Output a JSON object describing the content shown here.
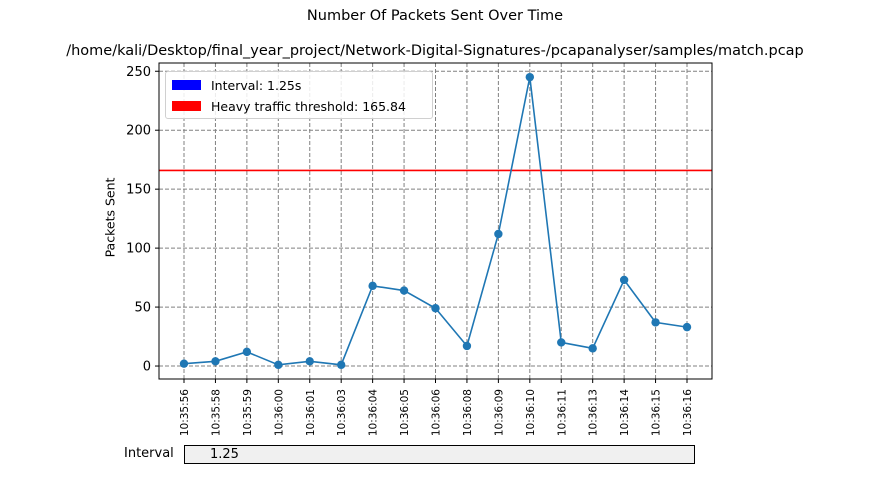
{
  "chart_data": {
    "type": "line",
    "title": "Number Of Packets Sent Over Time",
    "subtitle": "/home/kali/Desktop/final_year_project/Network-Digital-Signatures-/pcapanalyser/samples/match.pcap",
    "xlabel": "",
    "ylabel": "Packets Sent",
    "categories": [
      "10:35:56",
      "10:35:58",
      "10:35:59",
      "10:36:00",
      "10:36:01",
      "10:36:03",
      "10:36:04",
      "10:36:05",
      "10:36:06",
      "10:36:08",
      "10:36:09",
      "10:36:10",
      "10:36:11",
      "10:36:13",
      "10:36:14",
      "10:36:15",
      "10:36:16"
    ],
    "series": [
      {
        "values": [
          2,
          4,
          12,
          1,
          4,
          1,
          68,
          64,
          49,
          17,
          112,
          245,
          20,
          15,
          73,
          37,
          33
        ],
        "color": "#1f77b4"
      }
    ],
    "threshold": {
      "value": 165.84,
      "color": "#ff0000"
    },
    "ylim": [
      -11,
      257
    ],
    "yticks": [
      0,
      50,
      100,
      150,
      200,
      250
    ],
    "grid": true,
    "legend": {
      "placement": "top-left",
      "entries": [
        {
          "label": "Interval: 1.25s",
          "color": "#0000ff"
        },
        {
          "label": "Heavy traffic threshold: 165.84",
          "color": "#ff0000"
        }
      ]
    }
  },
  "interval_control": {
    "label": "Interval",
    "value": "1.25"
  }
}
